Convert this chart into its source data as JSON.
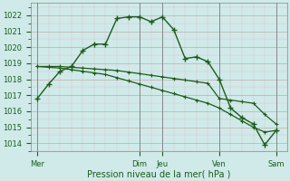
{
  "background_color": "#d0eaea",
  "plot_bg_color": "#d0eaea",
  "grid_major_color": "#b8cfcf",
  "grid_minor_color": "#c8dede",
  "line_color": "#1a5c1a",
  "text_color": "#1a5c1a",
  "vline_color": "#888888",
  "ylabel_ticks": [
    1014,
    1015,
    1016,
    1017,
    1018,
    1019,
    1020,
    1021,
    1022
  ],
  "ylim": [
    1013.5,
    1022.8
  ],
  "xlabel": "Pression niveau de la mer( hPa )",
  "day_labels": [
    "Mer",
    "Dim",
    "Jeu",
    "Ven",
    "Sam"
  ],
  "day_positions": [
    0,
    4.5,
    5.5,
    8.0,
    10.5
  ],
  "series1_x": [
    0,
    0.5,
    1.0,
    1.5,
    2.0,
    2.5,
    3.0,
    3.5,
    4.0,
    4.5,
    5.0,
    5.5,
    6.0,
    6.5,
    7.0,
    7.5,
    8.0,
    8.5,
    9.0,
    9.5,
    10.0,
    10.5
  ],
  "series1_y": [
    1016.8,
    1017.7,
    1018.5,
    1018.8,
    1019.8,
    1020.2,
    1020.2,
    1021.8,
    1021.9,
    1021.9,
    1021.6,
    1021.9,
    1021.1,
    1019.3,
    1019.4,
    1019.1,
    1018.0,
    1016.2,
    1015.6,
    1015.2,
    1013.9,
    1014.8
  ],
  "series2_x": [
    0,
    0.5,
    1.0,
    1.5,
    2.0,
    2.5,
    3.0,
    3.5,
    4.0,
    4.5,
    5.0,
    5.5,
    6.0,
    6.5,
    7.0,
    7.5,
    8.0,
    8.5,
    9.0,
    9.5,
    10.0,
    10.5
  ],
  "series2_y": [
    1018.8,
    1018.8,
    1018.8,
    1018.75,
    1018.7,
    1018.65,
    1018.6,
    1018.55,
    1018.45,
    1018.35,
    1018.25,
    1018.15,
    1018.05,
    1017.95,
    1017.85,
    1017.75,
    1016.8,
    1016.7,
    1016.6,
    1016.5,
    1015.8,
    1015.2
  ],
  "series3_x": [
    0,
    0.5,
    1.0,
    1.5,
    2.0,
    2.5,
    3.0,
    3.5,
    4.0,
    4.5,
    5.0,
    5.5,
    6.0,
    6.5,
    7.0,
    7.5,
    8.0,
    8.5,
    9.0,
    9.5,
    10.0,
    10.5
  ],
  "series3_y": [
    1018.8,
    1018.75,
    1018.7,
    1018.6,
    1018.5,
    1018.4,
    1018.3,
    1018.1,
    1017.9,
    1017.7,
    1017.5,
    1017.3,
    1017.1,
    1016.9,
    1016.7,
    1016.5,
    1016.2,
    1015.8,
    1015.4,
    1015.0,
    1014.7,
    1014.8
  ],
  "vline_positions": [
    0,
    4.5,
    5.5,
    8.0,
    10.5
  ],
  "xlim": [
    -0.3,
    11.0
  ],
  "figsize": [
    3.2,
    2.0
  ],
  "dpi": 100
}
